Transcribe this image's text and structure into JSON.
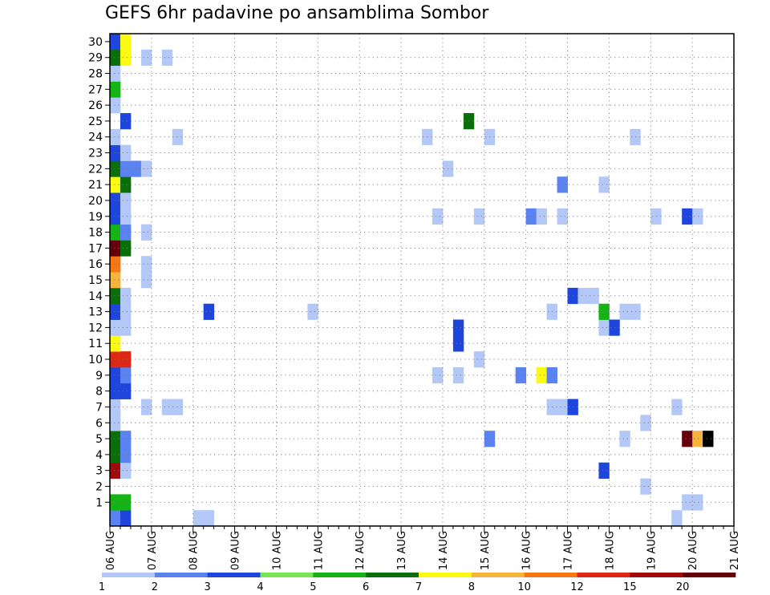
{
  "chart_data": {
    "type": "heatmap",
    "title": "GEFS 6hr padavine po ansamblima Sombor",
    "x_ticks": [
      "06 AUG",
      "07 AUG",
      "08 AUG",
      "09 AUG",
      "10 AUG",
      "11 AUG",
      "12 AUG",
      "13 AUG",
      "14 AUG",
      "15 AUG",
      "16 AUG",
      "17 AUG",
      "18 AUG",
      "19 AUG",
      "20 AUG",
      "21 AUG"
    ],
    "x_unit": "6h steps from 06 AUG 00",
    "y_ticks": [
      "1",
      "2",
      "3",
      "4",
      "5",
      "6",
      "7",
      "8",
      "9",
      "10",
      "11",
      "12",
      "13",
      "14",
      "15",
      "16",
      "17",
      "18",
      "19",
      "20",
      "21",
      "22",
      "23",
      "24",
      "25",
      "26",
      "27",
      "28",
      "29",
      "30"
    ],
    "grid": true,
    "legend": {
      "position": "bottom",
      "labels": [
        "1",
        "2",
        "3",
        "4",
        "5",
        "6",
        "7",
        "8",
        "10",
        "12",
        "15",
        "20"
      ],
      "colors": [
        "#b4c8f8",
        "#5a82f0",
        "#1e46dc",
        "#78e650",
        "#14b414",
        "#0a6e0a",
        "#fafa14",
        "#f5b43c",
        "#f57814",
        "#dc2814",
        "#a00a0a",
        "#64000a"
      ]
    },
    "cells": [
      [
        0,
        0,
        2
      ],
      [
        1,
        0,
        3
      ],
      [
        8,
        0,
        1
      ],
      [
        9,
        0,
        1
      ],
      [
        54,
        0,
        1
      ],
      [
        0,
        1,
        5
      ],
      [
        1,
        1,
        5
      ],
      [
        55,
        1,
        1
      ],
      [
        56,
        1,
        1
      ],
      [
        51,
        2,
        1
      ],
      [
        0,
        3,
        11
      ],
      [
        1,
        3,
        1
      ],
      [
        47,
        3,
        3
      ],
      [
        0,
        4,
        6
      ],
      [
        1,
        4,
        2
      ],
      [
        0,
        5,
        6
      ],
      [
        1,
        5,
        2
      ],
      [
        36,
        5,
        2
      ],
      [
        49,
        5,
        1
      ],
      [
        55,
        5,
        12
      ],
      [
        56,
        5,
        8
      ],
      [
        57,
        5,
        13
      ],
      [
        0,
        6,
        1
      ],
      [
        51,
        6,
        1
      ],
      [
        0,
        7,
        1
      ],
      [
        3,
        7,
        1
      ],
      [
        5,
        7,
        1
      ],
      [
        6,
        7,
        1
      ],
      [
        42,
        7,
        1
      ],
      [
        43,
        7,
        1
      ],
      [
        44,
        7,
        3
      ],
      [
        54,
        7,
        1
      ],
      [
        0,
        8,
        3
      ],
      [
        1,
        8,
        3
      ],
      [
        0,
        9,
        3
      ],
      [
        1,
        9,
        2
      ],
      [
        31,
        9,
        1
      ],
      [
        33,
        9,
        1
      ],
      [
        39,
        9,
        2
      ],
      [
        41,
        9,
        7
      ],
      [
        42,
        9,
        2
      ],
      [
        0,
        10,
        10
      ],
      [
        1,
        10,
        10
      ],
      [
        35,
        10,
        1
      ],
      [
        0,
        11,
        7
      ],
      [
        33,
        11,
        3
      ],
      [
        0,
        12,
        1
      ],
      [
        1,
        12,
        1
      ],
      [
        33,
        12,
        3
      ],
      [
        47,
        12,
        1
      ],
      [
        48,
        12,
        3
      ],
      [
        0,
        13,
        3
      ],
      [
        1,
        13,
        1
      ],
      [
        9,
        13,
        3
      ],
      [
        19,
        13,
        1
      ],
      [
        42,
        13,
        1
      ],
      [
        47,
        13,
        5
      ],
      [
        49,
        13,
        1
      ],
      [
        50,
        13,
        1
      ],
      [
        0,
        14,
        6
      ],
      [
        1,
        14,
        1
      ],
      [
        44,
        14,
        3
      ],
      [
        45,
        14,
        1
      ],
      [
        46,
        14,
        1
      ],
      [
        0,
        15,
        8
      ],
      [
        3,
        15,
        1
      ],
      [
        0,
        16,
        9
      ],
      [
        3,
        16,
        1
      ],
      [
        0,
        17,
        12
      ],
      [
        1,
        17,
        6
      ],
      [
        0,
        18,
        5
      ],
      [
        1,
        18,
        2
      ],
      [
        3,
        18,
        1
      ],
      [
        0,
        19,
        3
      ],
      [
        1,
        19,
        1
      ],
      [
        31,
        19,
        1
      ],
      [
        35,
        19,
        1
      ],
      [
        40,
        19,
        2
      ],
      [
        41,
        19,
        1
      ],
      [
        43,
        19,
        1
      ],
      [
        52,
        19,
        1
      ],
      [
        55,
        19,
        3
      ],
      [
        56,
        19,
        1
      ],
      [
        0,
        20,
        3
      ],
      [
        1,
        20,
        1
      ],
      [
        0,
        21,
        7
      ],
      [
        1,
        21,
        6
      ],
      [
        43,
        21,
        2
      ],
      [
        47,
        21,
        1
      ],
      [
        0,
        22,
        6
      ],
      [
        1,
        22,
        2
      ],
      [
        2,
        22,
        2
      ],
      [
        3,
        22,
        1
      ],
      [
        32,
        22,
        1
      ],
      [
        0,
        23,
        3
      ],
      [
        1,
        23,
        1
      ],
      [
        0,
        24,
        1
      ],
      [
        6,
        24,
        1
      ],
      [
        30,
        24,
        1
      ],
      [
        36,
        24,
        1
      ],
      [
        50,
        24,
        1
      ],
      [
        1,
        25,
        3
      ],
      [
        34,
        25,
        6
      ],
      [
        0,
        26,
        1
      ],
      [
        0,
        27,
        5
      ],
      [
        0,
        28,
        1
      ],
      [
        0,
        29,
        6
      ],
      [
        1,
        29,
        7
      ],
      [
        3,
        29,
        1
      ],
      [
        5,
        29,
        1
      ],
      [
        0,
        30,
        3
      ],
      [
        1,
        30,
        7
      ]
    ]
  }
}
